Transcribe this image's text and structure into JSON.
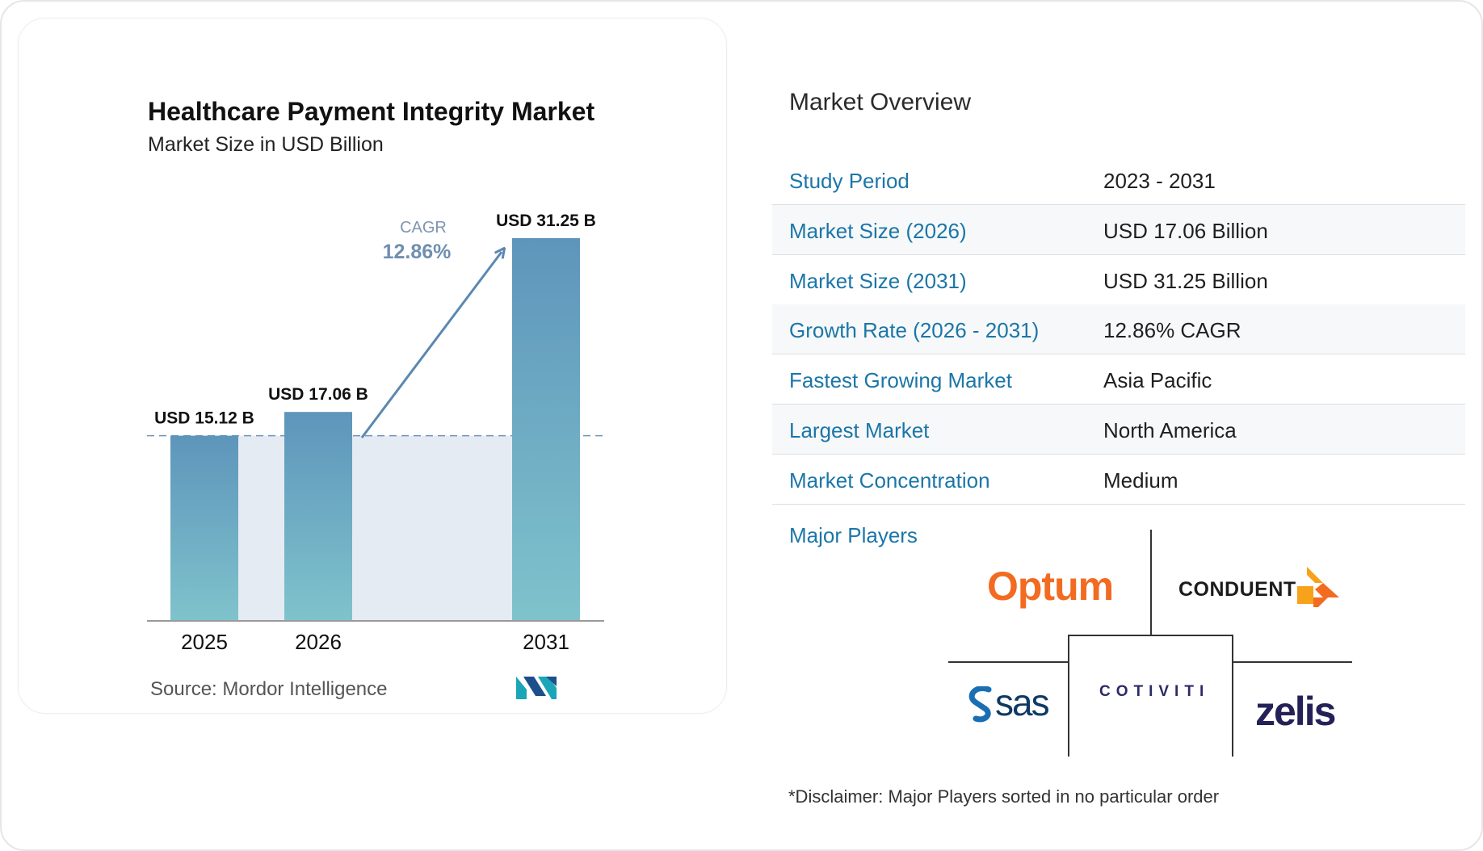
{
  "chart_data": {
    "type": "bar",
    "title": "Healthcare Payment Integrity Market",
    "subtitle": "Market Size in USD Billion",
    "categories": [
      "2025",
      "2026",
      "2031"
    ],
    "values": [
      15.12,
      17.06,
      31.25
    ],
    "data_labels": [
      "USD 15.12 B",
      "USD 17.06 B",
      "USD 31.25 B"
    ],
    "annotation": {
      "label": "CAGR",
      "value": "12.86%"
    },
    "colors": {
      "bar_top": "#5e95bb",
      "bar_bottom": "#7fc3cc",
      "band": "#e4ebf3",
      "arrow": "#5b88b0",
      "cagr_label": "#7f96b1",
      "cagr_value": "#6f8fb0"
    }
  },
  "source": {
    "label": "Source:",
    "name": "Mordor Intelligence",
    "logo_icon": "mordor-intelligence-logo-icon"
  },
  "overview": {
    "heading": "Market Overview",
    "rows": [
      {
        "label": "Study Period",
        "value": "2023 - 2031"
      },
      {
        "label": "Market Size (2026)",
        "value": "USD 17.06 Billion"
      },
      {
        "label": "Market Size (2031)",
        "value": "USD 31.25 Billion"
      },
      {
        "label": "Growth Rate (2026 - 2031)",
        "value": "12.86% CAGR"
      },
      {
        "label": "Fastest Growing Market",
        "value": "Asia Pacific"
      },
      {
        "label": "Largest Market",
        "value": "North America"
      },
      {
        "label": "Market Concentration",
        "value": "Medium"
      }
    ],
    "label_color": "#1b76a8"
  },
  "major_players": {
    "label": "Major Players",
    "players": [
      "Optum",
      "CONDUENT",
      "sas",
      "COTIVITI",
      "zelis"
    ],
    "disclaimer": "*Disclaimer: Major Players sorted in no particular order"
  }
}
